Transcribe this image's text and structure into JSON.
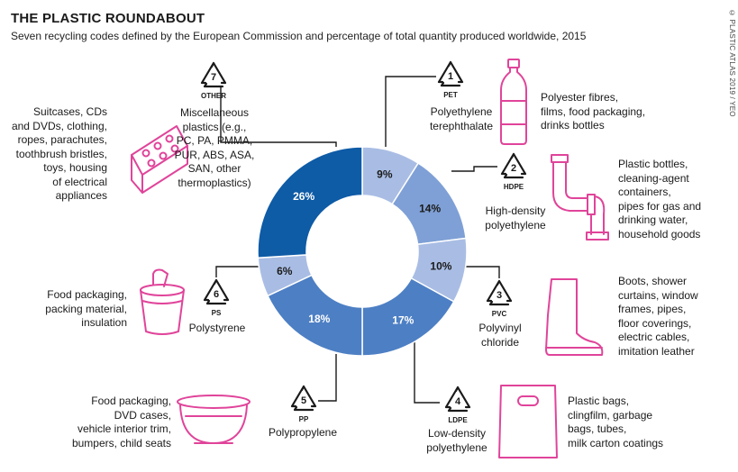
{
  "title": "THE PLASTIC ROUNDABOUT",
  "subtitle": "Seven recycling codes defined by the European Commission and percentage of total quantity produced worldwide, 2015",
  "credit": "© PLASTIC ATLAS 2019 / YEO",
  "colors": {
    "light": "#a9bde4",
    "mid": "#7fa0d6",
    "strong": "#4d7fc4",
    "dark": "#0e5ba6",
    "icon": "#e0449a",
    "line": "#1a1a1a"
  },
  "chart_data": {
    "type": "pie",
    "title": "THE PLASTIC ROUNDABOUT",
    "subtitle": "Seven recycling codes defined by the European Commission and percentage of total quantity produced worldwide, 2015",
    "slices": [
      {
        "code": "1",
        "abbr": "PET",
        "name": "Polyethylene terephthalate",
        "value": 9,
        "label": "9%",
        "color": "#a9bde4",
        "text_color": "#1a1a1a"
      },
      {
        "code": "2",
        "abbr": "HDPE",
        "name": "High-density polyethylene",
        "value": 14,
        "label": "14%",
        "color": "#7fa0d6",
        "text_color": "#1a1a1a"
      },
      {
        "code": "3",
        "abbr": "PVC",
        "name": "Polyvinyl chloride",
        "value": 10,
        "label": "10%",
        "color": "#a9bde4",
        "text_color": "#1a1a1a"
      },
      {
        "code": "4",
        "abbr": "LDPE",
        "name": "Low-density polyethylene",
        "value": 17,
        "label": "17%",
        "color": "#4d7fc4",
        "text_color": "#ffffff"
      },
      {
        "code": "5",
        "abbr": "PP",
        "name": "Polypropylene",
        "value": 18,
        "label": "18%",
        "color": "#4d7fc4",
        "text_color": "#ffffff"
      },
      {
        "code": "6",
        "abbr": "PS",
        "name": "Polystyrene",
        "value": 6,
        "label": "6%",
        "color": "#a9bde4",
        "text_color": "#1a1a1a"
      },
      {
        "code": "7",
        "abbr": "OTHER",
        "name": "Miscellaneous plastics (e.g., PC, PA, PMMA, PUR, ABS, ASA, SAN, other thermoplastics)",
        "value": 26,
        "label": "26%",
        "color": "#0e5ba6",
        "text_color": "#ffffff"
      }
    ]
  },
  "codes": [
    {
      "code": "1",
      "abbr": "PET",
      "name_lines": [
        "Polyethylene",
        "terephthalate"
      ],
      "uses_lines": [
        "Polyester fibres,",
        "films, food packaging,",
        "drinks bottles"
      ],
      "icon": "bottle-icon"
    },
    {
      "code": "2",
      "abbr": "HDPE",
      "name_lines": [
        "High-density",
        "polyethylene"
      ],
      "uses_lines": [
        "Plastic bottles,",
        "cleaning-agent",
        "containers,",
        "pipes for gas and",
        "drinking water,",
        "household goods"
      ],
      "icon": "pipe-icon"
    },
    {
      "code": "3",
      "abbr": "PVC",
      "name_lines": [
        "Polyvinyl",
        "chloride"
      ],
      "uses_lines": [
        "Boots, shower",
        "curtains, window",
        "frames, pipes,",
        "floor coverings,",
        "electric cables,",
        "imitation leather"
      ],
      "icon": "boot-icon"
    },
    {
      "code": "4",
      "abbr": "LDPE",
      "name_lines": [
        "Low-density",
        "polyethylene"
      ],
      "uses_lines": [
        "Plastic bags,",
        "clingfilm, garbage",
        "bags, tubes,",
        "milk carton coatings"
      ],
      "icon": "bag-icon"
    },
    {
      "code": "5",
      "abbr": "PP",
      "name_lines": [
        "Polypropylene"
      ],
      "uses_lines": [
        "Food packaging,",
        "DVD cases,",
        "vehicle interior trim,",
        "bumpers, child seats"
      ],
      "icon": "bowl-icon"
    },
    {
      "code": "6",
      "abbr": "PS",
      "name_lines": [
        "Polystyrene"
      ],
      "uses_lines": [
        "Food packaging,",
        "packing material,",
        "insulation"
      ],
      "icon": "yogurt-cup-icon"
    },
    {
      "code": "7",
      "abbr": "OTHER",
      "name_lines": [
        "Miscellaneous",
        "plastics (e.g.,",
        "PC, PA, PMMA,",
        "PUR, ABS, ASA,",
        "SAN, other",
        "thermoplastics)"
      ],
      "uses_lines": [
        "Suitcases, CDs",
        "and DVDs, clothing,",
        "ropes, parachutes,",
        "toothbrush bristles,",
        "toys, housing",
        "of electrical",
        "appliances"
      ],
      "icon": "toy-brick-icon"
    }
  ]
}
